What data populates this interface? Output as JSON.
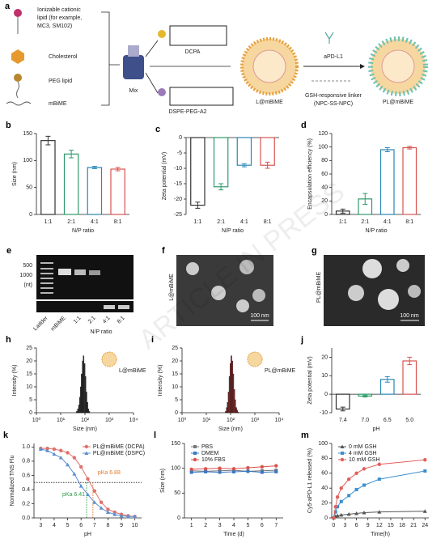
{
  "schematic": {
    "panel": "a",
    "components": [
      {
        "lines": [
          "Ionizable cationic",
          "lipid (for example,",
          "MC3, SM102)"
        ]
      },
      {
        "lines": [
          "Cholesterol"
        ]
      },
      {
        "lines": [
          "PEG lipid"
        ]
      },
      {
        "lines": [
          "mBiME"
        ]
      }
    ],
    "mix": "Mix",
    "dcpa": "DCPA",
    "dspe": "DSPE-PEG-A2",
    "nanoparticle": "L@mBiME",
    "antibody": "aPD-L1",
    "linker": [
      "GSH-responsive linker",
      "(NPC-SS-NPC)"
    ],
    "final": "PL@mBiME"
  },
  "gel": {
    "panel": "e",
    "size_labels": [
      "500",
      "1000"
    ],
    "unit": "(nt)",
    "lanes": [
      "Ladder",
      "mBiME",
      "1:1",
      "2:1",
      "4:1",
      "8:1"
    ],
    "xlabel": "N/P ratio"
  },
  "tem": [
    {
      "panel": "f",
      "label": "L@mBiME",
      "scale": "100 nm"
    },
    {
      "panel": "g",
      "label": "PL@mBiME",
      "scale": "100 nm"
    }
  ],
  "watermark": "ARTICLE IN PRESS",
  "chart_data": [
    {
      "type": "bar",
      "panel": "b",
      "categories": [
        "1:1",
        "2:1",
        "4:1",
        "8:1"
      ],
      "values": [
        137,
        112,
        87,
        84
      ],
      "errors": [
        8,
        7,
        2,
        3
      ],
      "colors": [
        "#333333",
        "#2e9a6b",
        "#2a86b8",
        "#d9534f"
      ],
      "ylim": [
        0,
        150
      ],
      "yticks": [
        0,
        50,
        100,
        150
      ],
      "y_label": "Size (nm)",
      "x_label": "N/P ratio"
    },
    {
      "type": "bar",
      "panel": "c",
      "categories": [
        "1:1",
        "2:1",
        "4:1",
        "8:1"
      ],
      "values": [
        -22,
        -16,
        -9,
        -9
      ],
      "errors": [
        1,
        1,
        0.5,
        1
      ],
      "colors": [
        "#333333",
        "#2e9a6b",
        "#2a86b8",
        "#d9534f"
      ],
      "ylim": [
        -25,
        0
      ],
      "yticks": [
        -25,
        -20,
        -15,
        -10,
        -5,
        0
      ],
      "y_label": "Zeta potential (mV)",
      "x_label": "N/P ratio"
    },
    {
      "type": "bar",
      "panel": "d",
      "categories": [
        "1:1",
        "2:1",
        "4:1",
        "8:1"
      ],
      "values": [
        5,
        23,
        96,
        99
      ],
      "errors": [
        3,
        8,
        3,
        2
      ],
      "colors": [
        "#333333",
        "#2e9a6b",
        "#2a86b8",
        "#d9534f"
      ],
      "ylim": [
        0,
        120
      ],
      "yticks": [
        0,
        20,
        40,
        60,
        80,
        100,
        120
      ],
      "y_label": "Encapsulation efficiency (%)",
      "x_label": "N/P ratio"
    },
    {
      "type": "histogram",
      "panel": "h",
      "label": "L@mBiME",
      "bins": [
        44,
        49,
        54,
        59,
        64,
        70,
        77,
        84,
        92,
        101,
        110,
        121,
        132,
        145,
        159
      ],
      "values": [
        0.5,
        1.5,
        3,
        6,
        10,
        15,
        20,
        22,
        19,
        14,
        8,
        4,
        1.5,
        0.5
      ],
      "color": "#333333",
      "xscale": "log",
      "xlim": [
        1,
        10000
      ],
      "xticks": [
        {
          "value": 1,
          "label": "10⁰"
        },
        {
          "value": 10,
          "label": "10¹"
        },
        {
          "value": 100,
          "label": "10²"
        },
        {
          "value": 1000,
          "label": "10³"
        },
        {
          "value": 10000,
          "label": "10⁴"
        }
      ],
      "ylim": [
        0,
        25
      ],
      "yticks": [
        0,
        5,
        10,
        15,
        20,
        25
      ],
      "y_label": "Intensity (%)",
      "x_label": "Size (nm)"
    },
    {
      "type": "histogram",
      "panel": "i",
      "label": "PL@mBiME",
      "bins": [
        60,
        66,
        72,
        79,
        86,
        94,
        103,
        113,
        124,
        136,
        149,
        163,
        179,
        196,
        215
      ],
      "values": [
        0.5,
        2,
        4,
        8,
        14,
        19,
        22,
        20,
        15,
        9,
        5,
        2,
        1,
        0.3
      ],
      "color": "#8b2e2e",
      "xscale": "log",
      "xlim": [
        1,
        10000
      ],
      "xticks": [
        {
          "value": 1,
          "label": "10⁰"
        },
        {
          "value": 10,
          "label": "10¹"
        },
        {
          "value": 100,
          "label": "10²"
        },
        {
          "value": 1000,
          "label": "10³"
        },
        {
          "value": 10000,
          "label": "10⁴"
        }
      ],
      "ylim": [
        0,
        25
      ],
      "yticks": [
        0,
        5,
        10,
        15,
        20,
        25
      ],
      "y_label": "Intensity (%)",
      "x_label": "Size (nm)"
    },
    {
      "type": "bar",
      "panel": "j",
      "categories": [
        "7.4",
        "7.0",
        "6.5",
        "5.0"
      ],
      "values": [
        -8,
        -1,
        8,
        18
      ],
      "errors": [
        1,
        0.5,
        1.5,
        2
      ],
      "colors": [
        "#333333",
        "#2e9a6b",
        "#2a86b8",
        "#d9534f"
      ],
      "ylim": [
        -10,
        25
      ],
      "yticks": [
        -10,
        0,
        10,
        20
      ],
      "y_label": "Zeta potential (mV)",
      "x_label": "pH"
    },
    {
      "type": "line",
      "panel": "k",
      "x": [
        3,
        3.5,
        4,
        4.5,
        5,
        5.5,
        6,
        6.5,
        7,
        7.5,
        8,
        8.5,
        9,
        9.5,
        10
      ],
      "series": [
        {
          "name": "PL@mBiME (DCPA)",
          "color": "#e0706a",
          "marker": "circle",
          "values": [
            0.98,
            0.98,
            0.97,
            0.95,
            0.92,
            0.85,
            0.72,
            0.55,
            0.38,
            0.22,
            0.12,
            0.08,
            0.05,
            0.03,
            0.02
          ]
        },
        {
          "name": "PL@mBiME (DSPC)",
          "color": "#5b8fd0",
          "marker": "triangle",
          "values": [
            0.97,
            0.95,
            0.9,
            0.85,
            0.75,
            0.62,
            0.45,
            0.33,
            0.22,
            0.14,
            0.08,
            0.05,
            0.03,
            0.02,
            0.02
          ]
        }
      ],
      "xlim": [
        2.5,
        10.5
      ],
      "xticks": [
        3,
        4,
        5,
        6,
        7,
        8,
        9,
        10
      ],
      "ylim": [
        0,
        1.05
      ],
      "yticks": [
        {
          "value": 0,
          "label": "0.0"
        },
        {
          "value": 0.2,
          "label": "0.2"
        },
        {
          "value": 0.4,
          "label": "0.4"
        },
        {
          "value": 0.6,
          "label": "0.6"
        },
        {
          "value": 0.8,
          "label": "0.8"
        },
        {
          "value": 1,
          "label": "1.0"
        }
      ],
      "hline": 0.5,
      "annotations": [
        {
          "text": "pKa 6.88",
          "x": 6.88
        },
        {
          "text": "pKa 6.41",
          "x": 6.41
        }
      ],
      "legend": "upper right",
      "y_label": "Normalized TNS Flu",
      "x_label": "pH"
    },
    {
      "type": "line",
      "panel": "l",
      "x": [
        1,
        2,
        3,
        4,
        5,
        6,
        7
      ],
      "series": [
        {
          "name": "PBS",
          "color": "#777777",
          "marker": "square",
          "values": [
            95,
            94,
            95,
            96,
            94,
            95,
            96
          ]
        },
        {
          "name": "DMEM",
          "color": "#3a78c2",
          "marker": "square",
          "values": [
            92,
            93,
            92,
            93,
            94,
            92,
            93
          ]
        },
        {
          "name": "10% FBS",
          "color": "#d9534f",
          "marker": "circle",
          "values": [
            98,
            99,
            100,
            99,
            101,
            103,
            105
          ]
        }
      ],
      "xlim": [
        0.5,
        7.5
      ],
      "xticks": [
        1,
        2,
        3,
        4,
        5,
        6,
        7
      ],
      "ylim": [
        0,
        150
      ],
      "yticks": [
        0,
        50,
        100,
        150
      ],
      "legend": "upper left",
      "y_label": "Size (nm)",
      "x_label": "Time (d)"
    },
    {
      "type": "line",
      "panel": "m",
      "x": [
        0,
        0.5,
        1,
        2,
        4,
        6,
        8,
        12,
        24
      ],
      "series": [
        {
          "name": "0 mM GSH",
          "color": "#555555",
          "marker": "triangle",
          "values": [
            0,
            2,
            3,
            4,
            5,
            6,
            7,
            8,
            9
          ]
        },
        {
          "name": "4 mM GSH",
          "color": "#3a8fd0",
          "marker": "square",
          "values": [
            0,
            8,
            15,
            22,
            30,
            38,
            44,
            52,
            63
          ]
        },
        {
          "name": "10 mM GSH",
          "color": "#e0605a",
          "marker": "circle",
          "values": [
            0,
            15,
            28,
            40,
            52,
            60,
            66,
            72,
            78
          ]
        }
      ],
      "xlim": [
        -0.5,
        25
      ],
      "xticks": [
        0,
        3,
        6,
        9,
        12,
        15,
        18,
        21,
        24
      ],
      "ylim": [
        0,
        100
      ],
      "yticks": [
        0,
        20,
        40,
        60,
        80,
        100
      ],
      "legend": "upper left",
      "y_label": "Cy5-aPD-L1 released (%)",
      "x_label": "Time(h)"
    }
  ]
}
